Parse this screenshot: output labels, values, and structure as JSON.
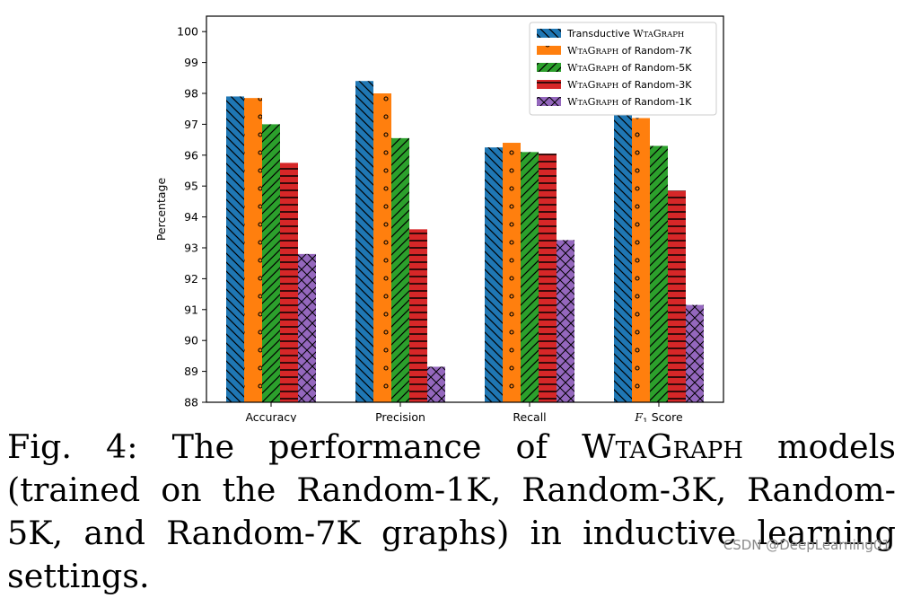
{
  "chart_data": {
    "type": "bar",
    "categories": [
      "Accuracy",
      "Precision",
      "Recall",
      "F1 Score"
    ],
    "ylabel": "Percentage",
    "ylim": [
      88,
      100.5
    ],
    "yticks": [
      "88",
      "89",
      "90",
      "91",
      "92",
      "93",
      "94",
      "95",
      "96",
      "97",
      "98",
      "99",
      "100"
    ],
    "legend_position": "top-right",
    "series": [
      {
        "name": "Transductive WtaGraph",
        "color": "#1f77b4",
        "hatch": "backslash",
        "values": [
          97.9,
          98.4,
          96.25,
          97.3
        ]
      },
      {
        "name": "WtaGraph of Random-7K",
        "color": "#ff7f0e",
        "hatch": "dots",
        "values": [
          97.85,
          98.0,
          96.4,
          97.2
        ]
      },
      {
        "name": "WtaGraph of Random-5K",
        "color": "#2ca02c",
        "hatch": "slash",
        "values": [
          97.0,
          96.55,
          96.1,
          96.3
        ]
      },
      {
        "name": "WtaGraph of Random-3K",
        "color": "#d62728",
        "hatch": "horizontal",
        "values": [
          95.75,
          93.6,
          96.05,
          94.85
        ]
      },
      {
        "name": "WtaGraph of Random-1K",
        "color": "#9467bd",
        "hatch": "cross",
        "values": [
          92.8,
          89.15,
          93.25,
          91.15
        ]
      }
    ]
  },
  "caption": {
    "prefix": "Fig. 4: The performance of ",
    "model_name": "WtaGraph",
    "suffix": " models (trained on the Random-1K, Random-3K, Random-5K, and Random-7K graphs) in inductive learning settings."
  },
  "watermark": "CSDN @DeepLearning01"
}
